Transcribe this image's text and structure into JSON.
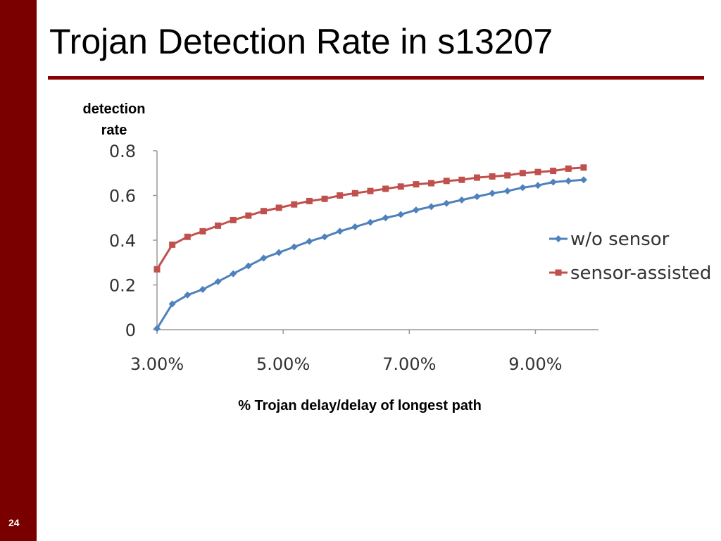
{
  "slide": {
    "title": "Trojan Detection Rate in s13207",
    "number": "24"
  },
  "chart_data": {
    "type": "line",
    "ylabel_line1": "detection",
    "ylabel_line2": "rate",
    "xlabel": "% Trojan delay/delay of longest path",
    "xlim": [
      3.0,
      10.0
    ],
    "ylim": [
      0,
      0.8
    ],
    "x_ticks": [
      3.0,
      5.0,
      7.0,
      9.0
    ],
    "x_tick_labels": [
      "3.00%",
      "5.00%",
      "7.00%",
      "9.00%"
    ],
    "y_ticks": [
      0,
      0.2,
      0.4,
      0.6,
      0.8
    ],
    "y_tick_labels": [
      "0",
      "0.2",
      "0.4",
      "0.6",
      "0.8"
    ],
    "legend_position": "right",
    "x": [
      3.0,
      3.2416,
      3.4832,
      3.7248,
      3.9664,
      4.208,
      4.4496,
      4.6912,
      4.9328,
      5.1744,
      5.416,
      5.6576,
      5.8992,
      6.1408,
      6.3824,
      6.624,
      6.8656,
      7.1072,
      7.3488,
      7.5904,
      7.832,
      8.0736,
      8.3152,
      8.5568,
      8.7984,
      9.04,
      9.2816,
      9.5232,
      9.7648
    ],
    "series": [
      {
        "name": "w/o sensor",
        "color": "#4f81bd",
        "marker": "diamond",
        "values": [
          0.005,
          0.115,
          0.155,
          0.18,
          0.215,
          0.25,
          0.285,
          0.32,
          0.345,
          0.37,
          0.395,
          0.415,
          0.44,
          0.46,
          0.48,
          0.5,
          0.515,
          0.535,
          0.55,
          0.565,
          0.58,
          0.595,
          0.61,
          0.62,
          0.635,
          0.645,
          0.66,
          0.665,
          0.67
        ]
      },
      {
        "name": "sensor-assisted",
        "color": "#c0504d",
        "marker": "square",
        "values": [
          0.27,
          0.38,
          0.415,
          0.44,
          0.465,
          0.49,
          0.51,
          0.53,
          0.545,
          0.56,
          0.575,
          0.585,
          0.6,
          0.61,
          0.62,
          0.63,
          0.64,
          0.65,
          0.655,
          0.665,
          0.67,
          0.68,
          0.685,
          0.69,
          0.7,
          0.705,
          0.71,
          0.72,
          0.725
        ]
      }
    ]
  }
}
